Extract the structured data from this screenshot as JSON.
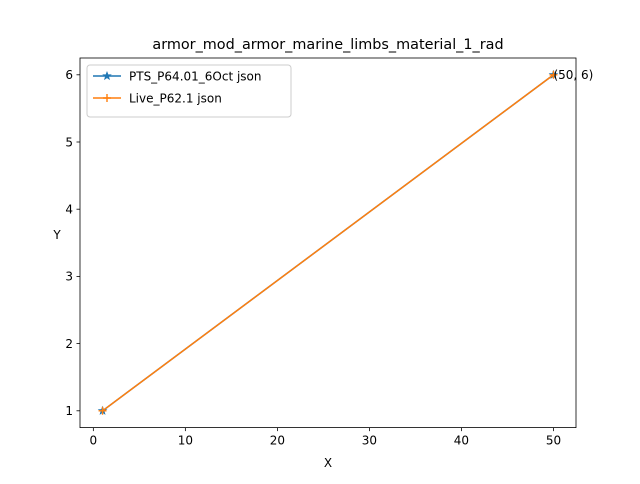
{
  "chart_data": {
    "type": "line",
    "title": "armor_mod_armor_marine_limbs_material_1_rad",
    "xlabel": "X",
    "ylabel": "Y",
    "xlim": [
      -1.45,
      52.45
    ],
    "ylim": [
      0.75,
      6.25
    ],
    "x_ticks": [
      0,
      10,
      20,
      30,
      40,
      50
    ],
    "y_ticks": [
      1,
      2,
      3,
      4,
      5,
      6
    ],
    "grid": false,
    "legend_position": "top-left",
    "series": [
      {
        "name": "PTS_P64.01_6Oct json",
        "color": "#1f77b4",
        "marker": "star",
        "x": [
          1,
          50
        ],
        "y": [
          1,
          6
        ]
      },
      {
        "name": "Live_P62.1 json",
        "color": "#ff7f0e",
        "marker": "plus",
        "x": [
          1,
          50
        ],
        "y": [
          1,
          6
        ]
      }
    ],
    "annotations": [
      {
        "text": "(50, 6)",
        "x": 50,
        "y": 6
      }
    ]
  }
}
